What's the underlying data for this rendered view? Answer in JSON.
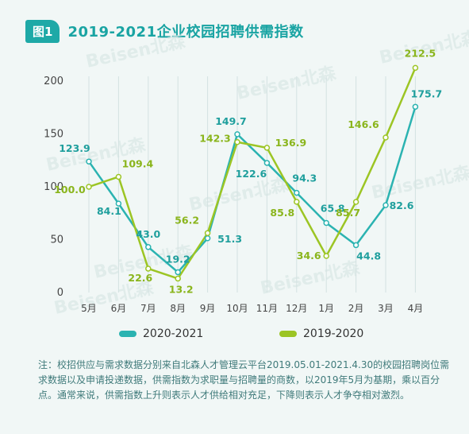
{
  "header": {
    "badge": "图1",
    "title": "2019-2021企业校园招聘供需指数"
  },
  "watermark": "Beisen北森",
  "legend": {
    "items": [
      {
        "label": "2020-2021",
        "color": "#2bb3b1"
      },
      {
        "label": "2019-2020",
        "color": "#9cc524"
      }
    ]
  },
  "chart_data": {
    "type": "line",
    "categories": [
      "5月",
      "6月",
      "7月",
      "8月",
      "9月",
      "10月",
      "11月",
      "12月",
      "1月",
      "2月",
      "3月",
      "4月"
    ],
    "series": [
      {
        "name": "2020-2021",
        "color": "#2bb3b1",
        "values": [
          123.9,
          84.1,
          43.0,
          19.2,
          51.3,
          149.7,
          122.6,
          94.3,
          65.8,
          44.8,
          82.6,
          175.7
        ],
        "labels": [
          "123.9",
          "84.1",
          "43.0",
          "19.2",
          "51.3",
          "149.7",
          "122.6",
          "94.3",
          "65.8",
          "44.8",
          "82.6",
          "175.7"
        ]
      },
      {
        "name": "2019-2020",
        "color": "#9cc524",
        "values": [
          100.0,
          109.4,
          22.6,
          13.2,
          56.2,
          142.3,
          136.9,
          85.8,
          34.6,
          85.7,
          146.6,
          212.5
        ],
        "labels": [
          "100.0",
          "109.4",
          "22.6",
          "13.2",
          "56.2",
          "142.3",
          "136.9",
          "85.8",
          "34.6",
          "85.7",
          "146.6",
          "212.5"
        ]
      }
    ],
    "yticks": [
      "0",
      "50",
      "100",
      "150",
      "200"
    ],
    "ylim": [
      0,
      225
    ],
    "grid": "vertical",
    "legend_position": "bottom"
  },
  "note": "注：校招供应与需求数据分别来自北森人才管理云平台2019.05.01-2021.4.30的校园招聘岗位需求数据以及申请投递数据，供需指数为求职量与招聘量的商数，以2019年5月为基期，乘以百分点。通常来说，供需指数上升则表示人才供给相对充足，下降则表示人才争夺相对激烈。"
}
